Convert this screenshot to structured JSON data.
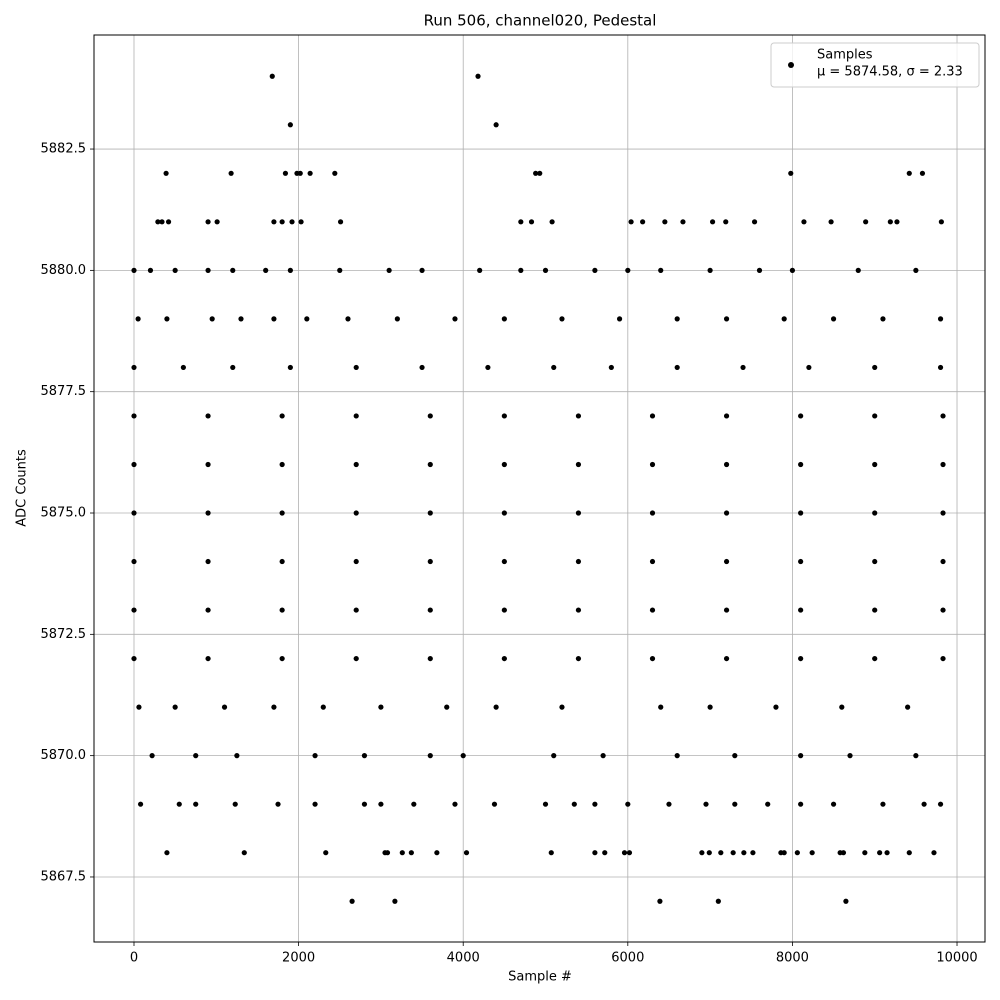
{
  "chart_data": {
    "type": "scatter",
    "title": "Run 506, channel020, Pedestal",
    "x_label": "Sample #",
    "y_label": "ADC Counts",
    "xlim": [
      -486,
      10340
    ],
    "ylim": [
      5866.16,
      5884.85
    ],
    "xticks": [
      0,
      2000,
      4000,
      6000,
      8000,
      10000
    ],
    "yticks": [
      5867.5,
      {
        "value": 5870,
        "label": "5870.0"
      },
      5872.5,
      {
        "value": 5875,
        "label": "5875.0"
      },
      5877.5,
      {
        "value": 5880,
        "label": "5880.0"
      },
      5882.5
    ],
    "grid": true,
    "legend_position": "upper right",
    "series": [
      {
        "name": "Samples",
        "legend_note": "μ = 5874.58, σ = 2.33",
        "color": "#000000",
        "x": [
          1680,
          4180,
          1900,
          4400,
          390,
          1180,
          1840,
          1980,
          2020,
          2140,
          2440,
          4880,
          4930,
          7980,
          9420,
          9580,
          290,
          340,
          420,
          900,
          1010,
          1700,
          1800,
          1920,
          2030,
          2510,
          4700,
          4830,
          5080,
          6040,
          6180,
          6450,
          6670,
          7030,
          7190,
          7540,
          8140,
          8470,
          8890,
          9190,
          9270,
          9810,
          0,
          200,
          500,
          900,
          1200,
          1600,
          1900,
          2500,
          3100,
          3500,
          4200,
          4700,
          5000,
          5600,
          6000,
          6400,
          7000,
          7600,
          8000,
          8800,
          9500,
          50,
          400,
          950,
          1300,
          1700,
          2100,
          2600,
          3200,
          3900,
          4500,
          5200,
          5900,
          6600,
          7200,
          7900,
          8500,
          9100,
          9800,
          0,
          600,
          1200,
          1900,
          2700,
          3500,
          4300,
          5100,
          5800,
          6600,
          7400,
          8200,
          9000,
          9800,
          0,
          900,
          1800,
          2700,
          3600,
          4500,
          5400,
          6300,
          7200,
          8100,
          9000,
          9830,
          0,
          900,
          1800,
          2700,
          3600,
          4500,
          5400,
          6300,
          7200,
          8100,
          9000,
          9830,
          0,
          900,
          1800,
          2700,
          3600,
          4500,
          5400,
          6300,
          7200,
          8100,
          9000,
          9830,
          0,
          900,
          1800,
          2700,
          3600,
          4500,
          5400,
          6300,
          7200,
          8100,
          9000,
          9830,
          0,
          900,
          1800,
          2700,
          3600,
          4500,
          5400,
          6300,
          7200,
          8100,
          9000,
          9830,
          0,
          900,
          1800,
          2700,
          3600,
          4500,
          5400,
          6300,
          7200,
          8100,
          9000,
          9830,
          60,
          500,
          1100,
          1700,
          2300,
          3000,
          3800,
          4400,
          5200,
          6400,
          7000,
          7800,
          8600,
          9400,
          220,
          750,
          1250,
          2200,
          2800,
          3600,
          4000,
          5100,
          5700,
          6600,
          7300,
          8100,
          8700,
          9500,
          80,
          550,
          750,
          1230,
          1750,
          2200,
          2800,
          3000,
          3400,
          3900,
          4380,
          5000,
          5350,
          5600,
          6000,
          6500,
          6950,
          7300,
          7700,
          8100,
          8500,
          9100,
          9600,
          9800,
          400,
          1340,
          2330,
          3050,
          3080,
          3260,
          3370,
          3680,
          4040,
          5070,
          5600,
          5720,
          5960,
          6020,
          6900,
          6990,
          7130,
          7280,
          7410,
          7520,
          7860,
          7900,
          8060,
          8240,
          8580,
          8620,
          8880,
          9060,
          9150,
          9420,
          9720,
          2650,
          3170,
          6390,
          7100,
          8650
        ],
        "values": [
          5884,
          5884,
          5883,
          5883,
          5882,
          5882,
          5882,
          5882,
          5882,
          5882,
          5882,
          5882,
          5882,
          5882,
          5882,
          5882,
          5881,
          5881,
          5881,
          5881,
          5881,
          5881,
          5881,
          5881,
          5881,
          5881,
          5881,
          5881,
          5881,
          5881,
          5881,
          5881,
          5881,
          5881,
          5881,
          5881,
          5881,
          5881,
          5881,
          5881,
          5881,
          5881,
          5880,
          5880,
          5880,
          5880,
          5880,
          5880,
          5880,
          5880,
          5880,
          5880,
          5880,
          5880,
          5880,
          5880,
          5880,
          5880,
          5880,
          5880,
          5880,
          5880,
          5880,
          5879,
          5879,
          5879,
          5879,
          5879,
          5879,
          5879,
          5879,
          5879,
          5879,
          5879,
          5879,
          5879,
          5879,
          5879,
          5879,
          5879,
          5879,
          5878,
          5878,
          5878,
          5878,
          5878,
          5878,
          5878,
          5878,
          5878,
          5878,
          5878,
          5878,
          5878,
          5878,
          5877,
          5877,
          5877,
          5877,
          5877,
          5877,
          5877,
          5877,
          5877,
          5877,
          5877,
          5877,
          5876,
          5876,
          5876,
          5876,
          5876,
          5876,
          5876,
          5876,
          5876,
          5876,
          5876,
          5876,
          5875,
          5875,
          5875,
          5875,
          5875,
          5875,
          5875,
          5875,
          5875,
          5875,
          5875,
          5875,
          5874,
          5874,
          5874,
          5874,
          5874,
          5874,
          5874,
          5874,
          5874,
          5874,
          5874,
          5874,
          5873,
          5873,
          5873,
          5873,
          5873,
          5873,
          5873,
          5873,
          5873,
          5873,
          5873,
          5873,
          5872,
          5872,
          5872,
          5872,
          5872,
          5872,
          5872,
          5872,
          5872,
          5872,
          5872,
          5872,
          5871,
          5871,
          5871,
          5871,
          5871,
          5871,
          5871,
          5871,
          5871,
          5871,
          5871,
          5871,
          5871,
          5871,
          5870,
          5870,
          5870,
          5870,
          5870,
          5870,
          5870,
          5870,
          5870,
          5870,
          5870,
          5870,
          5870,
          5870,
          5869,
          5869,
          5869,
          5869,
          5869,
          5869,
          5869,
          5869,
          5869,
          5869,
          5869,
          5869,
          5869,
          5869,
          5869,
          5869,
          5869,
          5869,
          5869,
          5869,
          5869,
          5869,
          5869,
          5869,
          5868,
          5868,
          5868,
          5868,
          5868,
          5868,
          5868,
          5868,
          5868,
          5868,
          5868,
          5868,
          5868,
          5868,
          5868,
          5868,
          5868,
          5868,
          5868,
          5868,
          5868,
          5868,
          5868,
          5868,
          5868,
          5868,
          5868,
          5868,
          5868,
          5868,
          5868,
          5867,
          5867,
          5867,
          5867,
          5867
        ]
      }
    ]
  }
}
